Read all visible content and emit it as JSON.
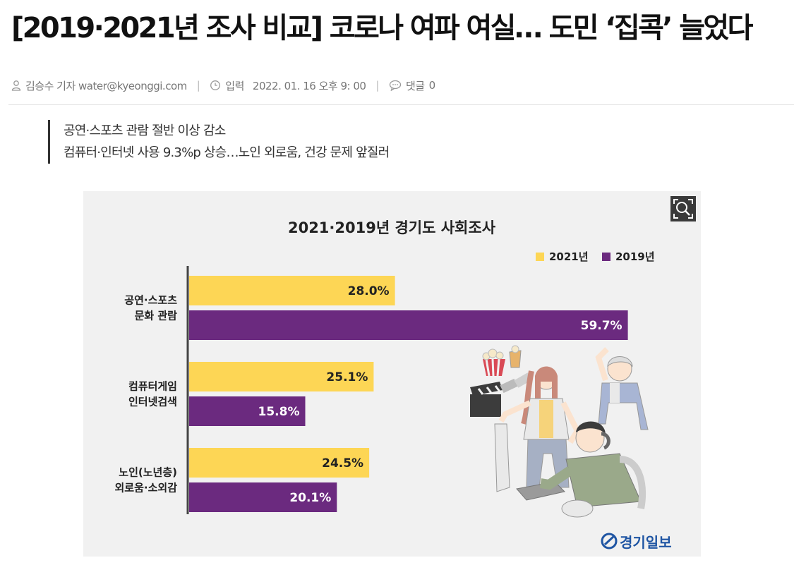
{
  "article": {
    "headline": "[2019·2021년 조사 비교] 코로나 여파 여실… 도민 ‘집콕’ 늘었다",
    "author": "김승수 기자 water@kyeonggi.com",
    "published_label": "입력",
    "published_at": "2022. 01. 16 오후 9: 00",
    "comments_label": "댓글",
    "comments_count": "0",
    "summary": [
      "공연·스포츠 관람 절반 이상 감소",
      "컴퓨터·인터넷 사용 9.3%p 상승…노인 외로움, 건강 문제 앞질러"
    ]
  },
  "icons": {
    "author": "person-icon",
    "time": "clock-icon",
    "comments": "speech-bubble-icon",
    "zoom": "magnifier-icon"
  },
  "chart_data": {
    "type": "bar",
    "orientation": "horizontal",
    "title": "2021·2019년 경기도 사회조사",
    "categories": [
      [
        "공연·스포츠",
        "문화 관람"
      ],
      [
        "컴퓨터게임",
        "인터넷검색"
      ],
      [
        "노인(노년층)",
        "외로움·소외감"
      ]
    ],
    "series": [
      {
        "name": "2021년",
        "color": "#FDD655",
        "values": [
          28.0,
          25.1,
          24.5
        ]
      },
      {
        "name": "2019년",
        "color": "#6B2A7F",
        "values": [
          59.7,
          15.8,
          20.1
        ]
      }
    ],
    "value_labels": [
      [
        "28.0%",
        "25.1%",
        "24.5%"
      ],
      [
        "59.7%",
        "15.8%",
        "20.1%"
      ]
    ],
    "unit": "%",
    "xlim": [
      0,
      63
    ],
    "legend_position": "top-right",
    "grid": false
  },
  "figure": {
    "logo_text": "경기일보",
    "zoom_label": "확대"
  }
}
